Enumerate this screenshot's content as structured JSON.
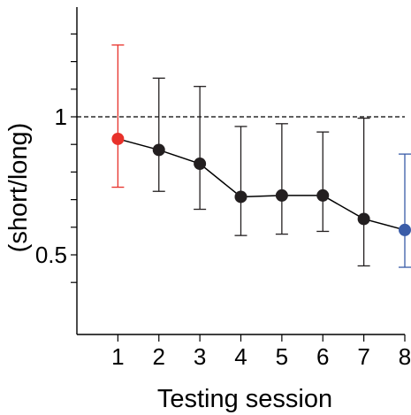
{
  "chart_data": {
    "type": "line",
    "xlabel": "Testing session",
    "ylabel": "(short/long)",
    "xlim": [
      0,
      8
    ],
    "ylim": [
      0.34,
      1.4
    ],
    "x": [
      1,
      2,
      3,
      4,
      5,
      6,
      7,
      8
    ],
    "x_tick_labels": [
      "1",
      "2",
      "3",
      "4",
      "5",
      "6",
      "7",
      "8"
    ],
    "y_ticks": [
      0.5,
      1
    ],
    "y_tick_labels": [
      "0.5",
      "1"
    ],
    "reference_line": {
      "y": 1,
      "style": "dashed"
    },
    "series": [
      {
        "values": [
          0.92,
          0.88,
          0.83,
          0.71,
          0.715,
          0.715,
          0.63,
          0.59
        ],
        "err_low": [
          0.745,
          0.73,
          0.665,
          0.57,
          0.575,
          0.585,
          0.46,
          0.455
        ],
        "err_high": [
          1.26,
          1.14,
          1.11,
          0.965,
          0.975,
          0.945,
          0.995,
          0.865
        ],
        "point_colors": [
          "#e8312a",
          "#231f20",
          "#231f20",
          "#231f20",
          "#231f20",
          "#231f20",
          "#231f20",
          "#3a5ca8"
        ],
        "line_color": "#000000"
      }
    ],
    "grid": false
  }
}
